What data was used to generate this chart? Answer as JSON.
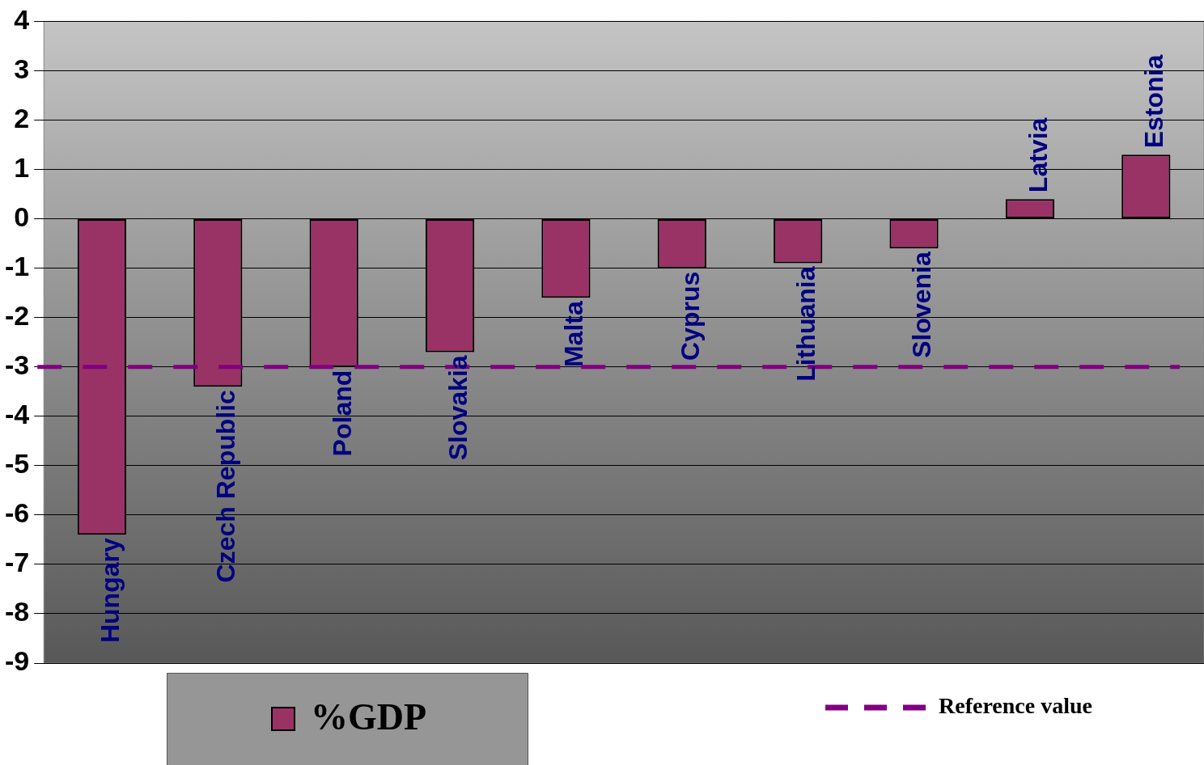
{
  "chart_data": {
    "type": "bar",
    "categories": [
      "Hungary",
      "Czech Republic",
      "Poland",
      "Slovakia",
      "Malta",
      "Cyprus",
      "Lithuania",
      "Slovenia",
      "Latvia",
      "Estonia"
    ],
    "series": [
      {
        "name": "%GDP",
        "color": "#993366",
        "values": [
          -6.4,
          -3.4,
          -3.0,
          -2.7,
          -1.6,
          -1.0,
          -0.9,
          -0.6,
          0.4,
          1.3
        ]
      }
    ],
    "ylim": [
      -9,
      4
    ],
    "yticks": [
      -9,
      -8,
      -7,
      -6,
      -5,
      -4,
      -3,
      -2,
      -1,
      0,
      1,
      2,
      3,
      4
    ],
    "ref_lines": [
      {
        "axis": "y",
        "value": -3,
        "label": "Reference value",
        "color": "#800080",
        "line_style": "dashed"
      }
    ],
    "grid": "y",
    "legend": "bottom",
    "tick_labels": "y"
  }
}
